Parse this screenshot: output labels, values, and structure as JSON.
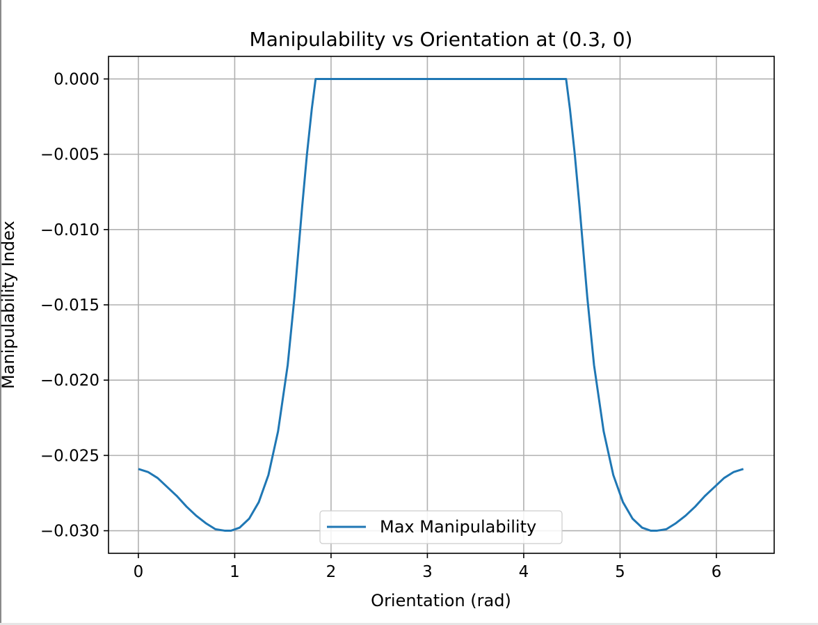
{
  "chart_data": {
    "type": "line",
    "title": "Manipulability vs Orientation at (0.3, 0)",
    "xlabel": "Orientation (rad)",
    "ylabel": "Manipulability Index",
    "xlim": [
      -0.31,
      6.6
    ],
    "ylim": [
      -0.0315,
      0.0015
    ],
    "xticks": [
      0,
      1,
      2,
      3,
      4,
      5,
      6
    ],
    "yticks": [
      0.0,
      -0.005,
      -0.01,
      -0.015,
      -0.02,
      -0.025,
      -0.03
    ],
    "xtick_labels": [
      "0",
      "1",
      "2",
      "3",
      "4",
      "5",
      "6"
    ],
    "ytick_labels": [
      "0.000",
      "−0.005",
      "−0.010",
      "−0.015",
      "−0.020",
      "−0.025",
      "−0.030"
    ],
    "grid": true,
    "legend_position": "lower-center",
    "series": [
      {
        "name": "Max Manipulability",
        "color": "#1f77b4",
        "x": [
          0.0,
          0.1,
          0.2,
          0.3,
          0.4,
          0.5,
          0.6,
          0.7,
          0.8,
          0.9,
          0.96,
          1.05,
          1.15,
          1.25,
          1.35,
          1.45,
          1.55,
          1.62,
          1.7,
          1.75,
          1.8,
          1.83,
          1.84,
          2.5,
          3.2,
          3.8,
          4.44,
          4.45,
          4.48,
          4.53,
          4.58,
          4.66,
          4.73,
          4.83,
          4.93,
          5.03,
          5.13,
          5.23,
          5.32,
          5.38,
          5.48,
          5.58,
          5.68,
          5.78,
          5.88,
          5.98,
          6.08,
          6.18,
          6.28
        ],
        "y": [
          -0.0259,
          -0.0261,
          -0.0265,
          -0.0271,
          -0.0277,
          -0.0284,
          -0.029,
          -0.0295,
          -0.0299,
          -0.03,
          -0.03,
          -0.0298,
          -0.0292,
          -0.0281,
          -0.0263,
          -0.0234,
          -0.019,
          -0.0145,
          -0.0085,
          -0.005,
          -0.002,
          -0.0005,
          0.0,
          0.0,
          0.0,
          0.0,
          0.0,
          -0.0005,
          -0.002,
          -0.005,
          -0.0085,
          -0.0145,
          -0.019,
          -0.0234,
          -0.0263,
          -0.0281,
          -0.0292,
          -0.0298,
          -0.03,
          -0.03,
          -0.0299,
          -0.0295,
          -0.029,
          -0.0284,
          -0.0277,
          -0.0271,
          -0.0265,
          -0.0261,
          -0.0259
        ]
      }
    ]
  }
}
